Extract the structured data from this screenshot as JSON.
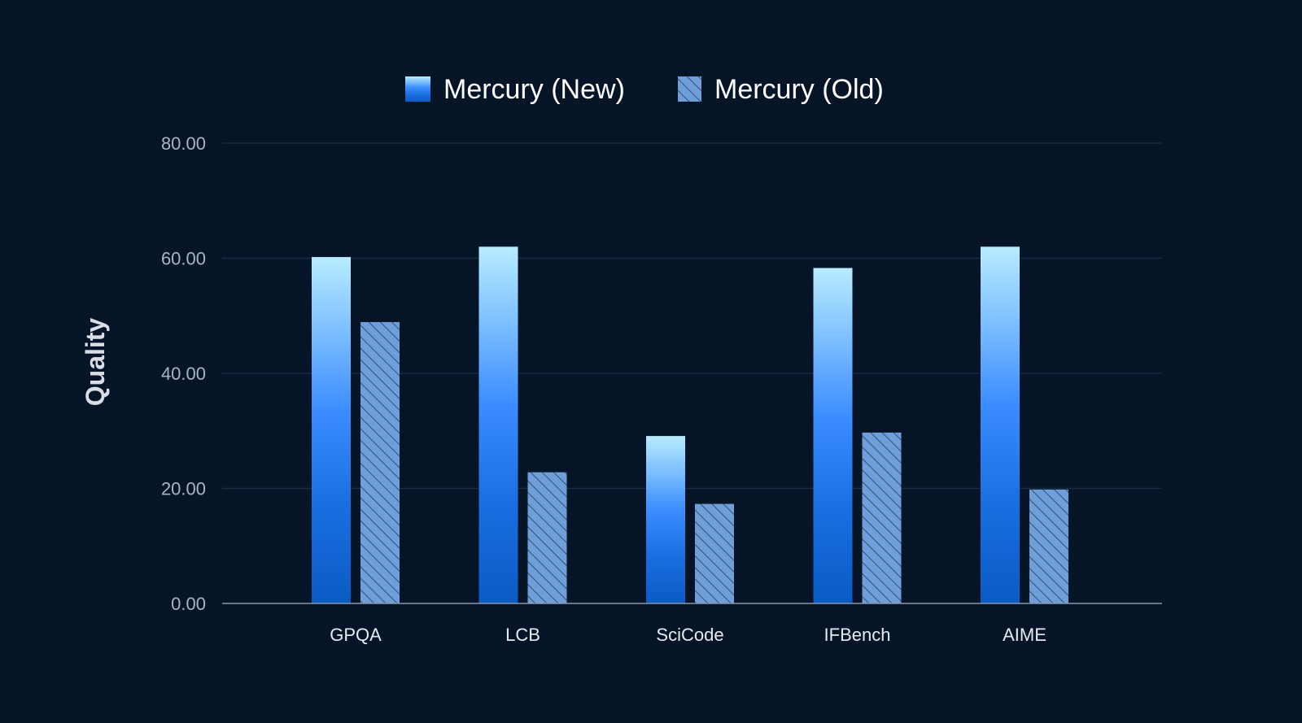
{
  "chart_data": {
    "type": "bar",
    "categories": [
      "GPQA",
      "LCB",
      "SciCode",
      "IFBench",
      "AIME"
    ],
    "series": [
      {
        "name": "Mercury (New)",
        "values": [
          60.2,
          62.0,
          29.1,
          58.3,
          62.0
        ],
        "style": "gradient",
        "color": "#2f8bff"
      },
      {
        "name": "Mercury (Old)",
        "values": [
          48.9,
          22.8,
          17.3,
          29.7,
          19.8
        ],
        "style": "hatched",
        "color": "#6f9fd8"
      }
    ],
    "ylabel": "Quality",
    "ylim": [
      0,
      80
    ],
    "yticks": [
      "0.00",
      "20.00",
      "40.00",
      "60.00",
      "80.00"
    ],
    "ytick_values": [
      0,
      20,
      40,
      60,
      80
    ],
    "grid": true,
    "legend_position": "top-center",
    "colors": {
      "background": "#061428",
      "gridline": "#1a2a40",
      "axis_line": "#8a96a8",
      "new_gradient_top": "#b8ecff",
      "new_gradient_mid": "#3a8cff",
      "new_gradient_bottom": "#0a5bc4",
      "old_fill": "#6f9fd8",
      "old_hatch": "#2e4f7a"
    }
  }
}
